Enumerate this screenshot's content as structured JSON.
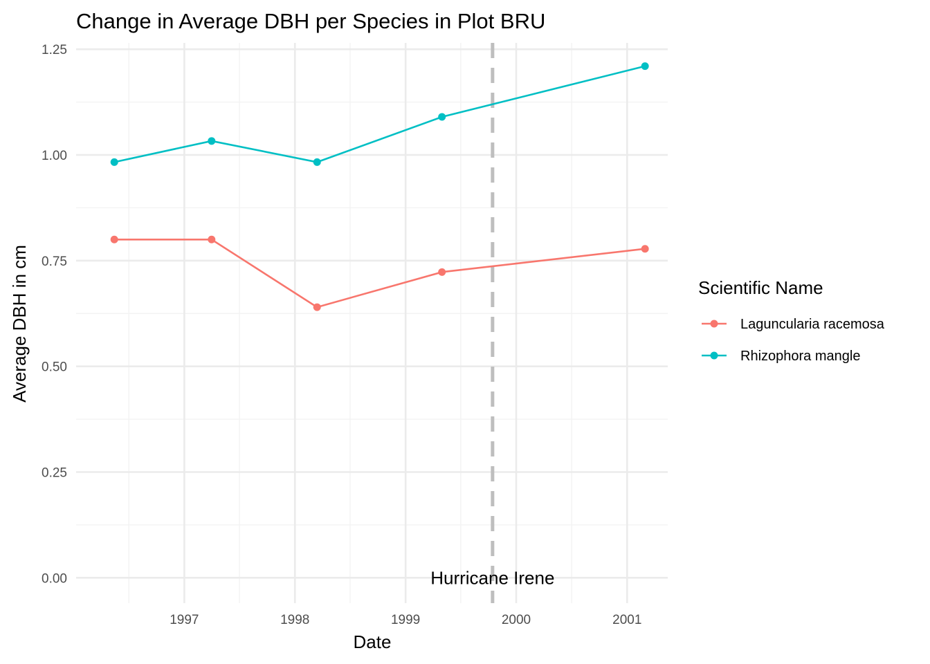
{
  "chart_data": {
    "type": "line",
    "title": "Change in Average DBH per Species in Plot BRU",
    "xlabel": "Date",
    "ylabel": "Average DBH in cm",
    "x_tick_labels": [
      "1997",
      "1998",
      "1999",
      "2000",
      "2001"
    ],
    "y_tick_labels": [
      "0.00",
      "0.25",
      "0.50",
      "0.75",
      "1.00",
      "1.25"
    ],
    "xlim": [
      "1996-01-10",
      "2001-05-15"
    ],
    "ylim": [
      -0.06,
      1.265
    ],
    "grid": true,
    "legend": {
      "title": "Scientific Name",
      "position": "right"
    },
    "series": [
      {
        "name": "Laguncularia racemosa",
        "color": "#F8766D",
        "x": [
          "1996-05-15",
          "1997-04-01",
          "1998-03-15",
          "1999-05-01",
          "2001-03-01"
        ],
        "y": [
          0.8,
          0.8,
          0.64,
          0.723,
          0.778
        ]
      },
      {
        "name": "Rhizophora mangle",
        "color": "#00BFC4",
        "x": [
          "1996-05-15",
          "1997-04-01",
          "1998-03-15",
          "1999-05-01",
          "2001-03-01"
        ],
        "y": [
          0.983,
          1.033,
          0.983,
          1.09,
          1.21
        ]
      }
    ],
    "annotations": [
      {
        "type": "vline",
        "x": "1999-10-15",
        "color": "#BEBEBE",
        "linestyle": "dashed",
        "label": "Hurricane Irene",
        "label_y": 0.0
      }
    ]
  }
}
